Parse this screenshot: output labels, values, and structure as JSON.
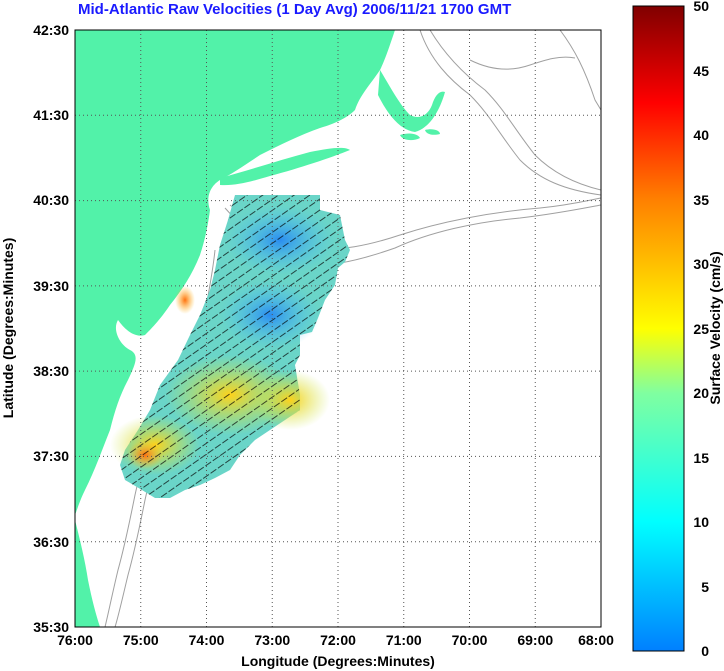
{
  "title": "Mid-Atlantic Raw Velocities (1 Day Avg) 2006/11/21 1700 GMT",
  "x_axis": {
    "label": "Longitude (Degrees:Minutes)",
    "ticks": [
      "76:00",
      "75:00",
      "74:00",
      "73:00",
      "72:00",
      "71:00",
      "70:00",
      "69:00",
      "68:00"
    ]
  },
  "y_axis": {
    "label": "Latitude (Degrees:Minutes)",
    "ticks": [
      "42:30",
      "41:30",
      "40:30",
      "39:30",
      "38:30",
      "37:30",
      "36:30",
      "35:30"
    ]
  },
  "colorbar": {
    "label": "Surface Velocity (cm/s)",
    "ticks": [
      "50",
      "45",
      "40",
      "35",
      "30",
      "25",
      "20",
      "15",
      "10",
      "5",
      "0"
    ],
    "min": 0,
    "max": 50
  },
  "colors": {
    "land": "#52f2a9",
    "water": "#ffffff",
    "contour": "#a0a0a0",
    "grid": "#555555",
    "title": "#1a1aff"
  }
}
